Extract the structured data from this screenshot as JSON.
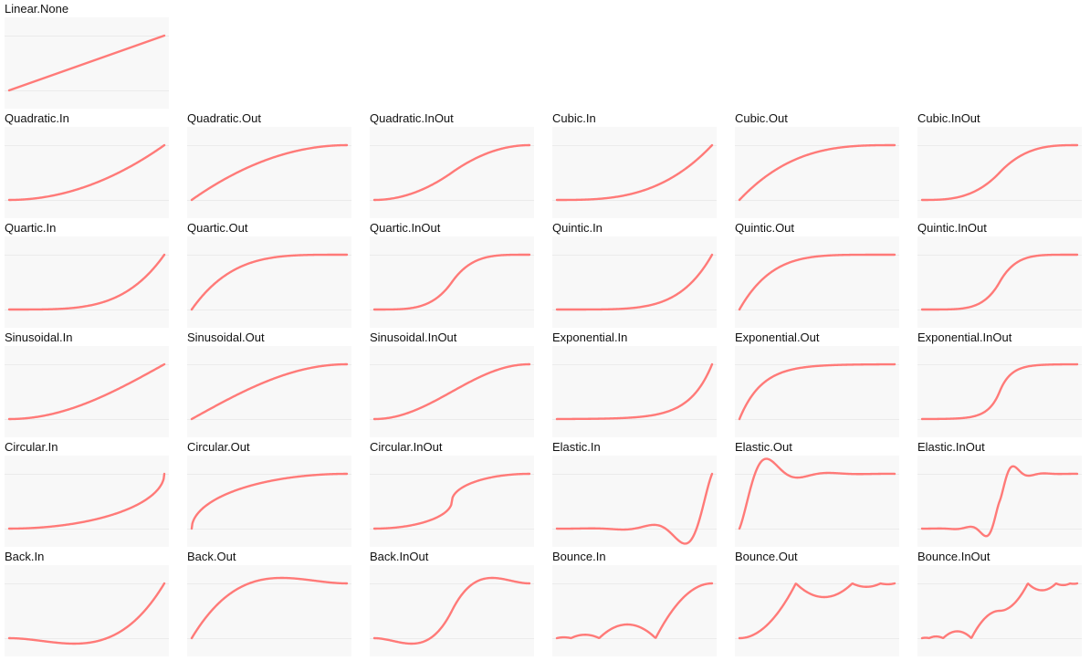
{
  "style": {
    "curve_color": "#ff7a78",
    "panel_bg": "#f8f8f8",
    "gridline_color": "#ebebeb"
  },
  "chart_data": [
    {
      "type": "line",
      "title": "Linear.None",
      "easing": "Linear.None",
      "x_range": [
        0,
        1
      ],
      "y_range": [
        0,
        1
      ],
      "grid": "horizontal lines at 0 and 1"
    },
    {
      "type": "line",
      "title": "Quadratic.In",
      "easing": "Quadratic.In",
      "x_range": [
        0,
        1
      ],
      "y_range": [
        0,
        1
      ]
    },
    {
      "type": "line",
      "title": "Quadratic.Out",
      "easing": "Quadratic.Out",
      "x_range": [
        0,
        1
      ],
      "y_range": [
        0,
        1
      ]
    },
    {
      "type": "line",
      "title": "Quadratic.InOut",
      "easing": "Quadratic.InOut",
      "x_range": [
        0,
        1
      ],
      "y_range": [
        0,
        1
      ]
    },
    {
      "type": "line",
      "title": "Cubic.In",
      "easing": "Cubic.In",
      "x_range": [
        0,
        1
      ],
      "y_range": [
        0,
        1
      ]
    },
    {
      "type": "line",
      "title": "Cubic.Out",
      "easing": "Cubic.Out",
      "x_range": [
        0,
        1
      ],
      "y_range": [
        0,
        1
      ]
    },
    {
      "type": "line",
      "title": "Cubic.InOut",
      "easing": "Cubic.InOut",
      "x_range": [
        0,
        1
      ],
      "y_range": [
        0,
        1
      ]
    },
    {
      "type": "line",
      "title": "Quartic.In",
      "easing": "Quartic.In",
      "x_range": [
        0,
        1
      ],
      "y_range": [
        0,
        1
      ]
    },
    {
      "type": "line",
      "title": "Quartic.Out",
      "easing": "Quartic.Out",
      "x_range": [
        0,
        1
      ],
      "y_range": [
        0,
        1
      ]
    },
    {
      "type": "line",
      "title": "Quartic.InOut",
      "easing": "Quartic.InOut",
      "x_range": [
        0,
        1
      ],
      "y_range": [
        0,
        1
      ]
    },
    {
      "type": "line",
      "title": "Quintic.In",
      "easing": "Quintic.In",
      "x_range": [
        0,
        1
      ],
      "y_range": [
        0,
        1
      ]
    },
    {
      "type": "line",
      "title": "Quintic.Out",
      "easing": "Quintic.Out",
      "x_range": [
        0,
        1
      ],
      "y_range": [
        0,
        1
      ]
    },
    {
      "type": "line",
      "title": "Quintic.InOut",
      "easing": "Quintic.InOut",
      "x_range": [
        0,
        1
      ],
      "y_range": [
        0,
        1
      ]
    },
    {
      "type": "line",
      "title": "Sinusoidal.In",
      "easing": "Sinusoidal.In",
      "x_range": [
        0,
        1
      ],
      "y_range": [
        0,
        1
      ]
    },
    {
      "type": "line",
      "title": "Sinusoidal.Out",
      "easing": "Sinusoidal.Out",
      "x_range": [
        0,
        1
      ],
      "y_range": [
        0,
        1
      ]
    },
    {
      "type": "line",
      "title": "Sinusoidal.InOut",
      "easing": "Sinusoidal.InOut",
      "x_range": [
        0,
        1
      ],
      "y_range": [
        0,
        1
      ]
    },
    {
      "type": "line",
      "title": "Exponential.In",
      "easing": "Exponential.In",
      "x_range": [
        0,
        1
      ],
      "y_range": [
        0,
        1
      ]
    },
    {
      "type": "line",
      "title": "Exponential.Out",
      "easing": "Exponential.Out",
      "x_range": [
        0,
        1
      ],
      "y_range": [
        0,
        1
      ]
    },
    {
      "type": "line",
      "title": "Exponential.InOut",
      "easing": "Exponential.InOut",
      "x_range": [
        0,
        1
      ],
      "y_range": [
        0,
        1
      ]
    },
    {
      "type": "line",
      "title": "Circular.In",
      "easing": "Circular.In",
      "x_range": [
        0,
        1
      ],
      "y_range": [
        0,
        1
      ]
    },
    {
      "type": "line",
      "title": "Circular.Out",
      "easing": "Circular.Out",
      "x_range": [
        0,
        1
      ],
      "y_range": [
        0,
        1
      ]
    },
    {
      "type": "line",
      "title": "Circular.InOut",
      "easing": "Circular.InOut",
      "x_range": [
        0,
        1
      ],
      "y_range": [
        0,
        1
      ]
    },
    {
      "type": "line",
      "title": "Elastic.In",
      "easing": "Elastic.In",
      "x_range": [
        0,
        1
      ],
      "y_range": [
        -0.4,
        1
      ]
    },
    {
      "type": "line",
      "title": "Elastic.Out",
      "easing": "Elastic.Out",
      "x_range": [
        0,
        1
      ],
      "y_range": [
        0,
        1.4
      ]
    },
    {
      "type": "line",
      "title": "Elastic.InOut",
      "easing": "Elastic.InOut",
      "x_range": [
        0,
        1
      ],
      "y_range": [
        -0.2,
        1.2
      ]
    },
    {
      "type": "line",
      "title": "Back.In",
      "easing": "Back.In",
      "x_range": [
        0,
        1
      ],
      "y_range": [
        -0.1,
        1
      ]
    },
    {
      "type": "line",
      "title": "Back.Out",
      "easing": "Back.Out",
      "x_range": [
        0,
        1
      ],
      "y_range": [
        0,
        1.1
      ]
    },
    {
      "type": "line",
      "title": "Back.InOut",
      "easing": "Back.InOut",
      "x_range": [
        0,
        1
      ],
      "y_range": [
        -0.1,
        1.1
      ]
    },
    {
      "type": "line",
      "title": "Bounce.In",
      "easing": "Bounce.In",
      "x_range": [
        0,
        1
      ],
      "y_range": [
        0,
        1
      ]
    },
    {
      "type": "line",
      "title": "Bounce.Out",
      "easing": "Bounce.Out",
      "x_range": [
        0,
        1
      ],
      "y_range": [
        0,
        1
      ]
    },
    {
      "type": "line",
      "title": "Bounce.InOut",
      "easing": "Bounce.InOut",
      "x_range": [
        0,
        1
      ],
      "y_range": [
        0,
        1
      ]
    }
  ]
}
